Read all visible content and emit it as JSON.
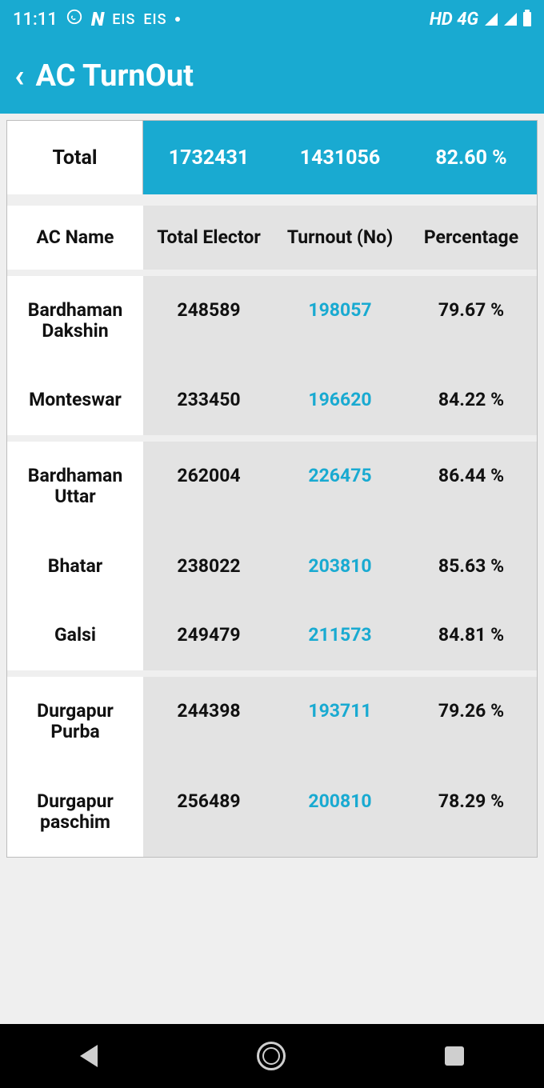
{
  "status": {
    "time": "11:11",
    "labels": [
      "EIS",
      "EIS"
    ],
    "network": "HD 4G"
  },
  "appbar": {
    "title": "AC TurnOut"
  },
  "table": {
    "total": {
      "label": "Total",
      "elector": "1732431",
      "turnout": "1431056",
      "percentage": "82.60 %"
    },
    "headers": {
      "name": "AC Name",
      "elector": "Total Elector",
      "turnout": "Turnout (No)",
      "percentage": "Percentage"
    },
    "groups": [
      [
        {
          "name": "Bardhaman Dakshin",
          "elector": "248589",
          "turnout": "198057",
          "percentage": "79.67 %"
        },
        {
          "name": "Monteswar",
          "elector": "233450",
          "turnout": "196620",
          "percentage": "84.22 %"
        }
      ],
      [
        {
          "name": "Bardhaman Uttar",
          "elector": "262004",
          "turnout": "226475",
          "percentage": "86.44 %"
        },
        {
          "name": "Bhatar",
          "elector": "238022",
          "turnout": "203810",
          "percentage": "85.63 %"
        },
        {
          "name": "Galsi",
          "elector": "249479",
          "turnout": "211573",
          "percentage": "84.81 %"
        }
      ],
      [
        {
          "name": "Durgapur Purba",
          "elector": "244398",
          "turnout": "193711",
          "percentage": "79.26 %"
        },
        {
          "name": "Durgapur paschim",
          "elector": "256489",
          "turnout": "200810",
          "percentage": "78.29 %"
        }
      ]
    ],
    "colors": {
      "accent": "#19aad1",
      "header_bg": "#e3e3e3",
      "row_bg": "#e3e3e3",
      "name_bg": "#ffffff",
      "turnout_text": "#19aad1",
      "text": "#111111"
    }
  }
}
